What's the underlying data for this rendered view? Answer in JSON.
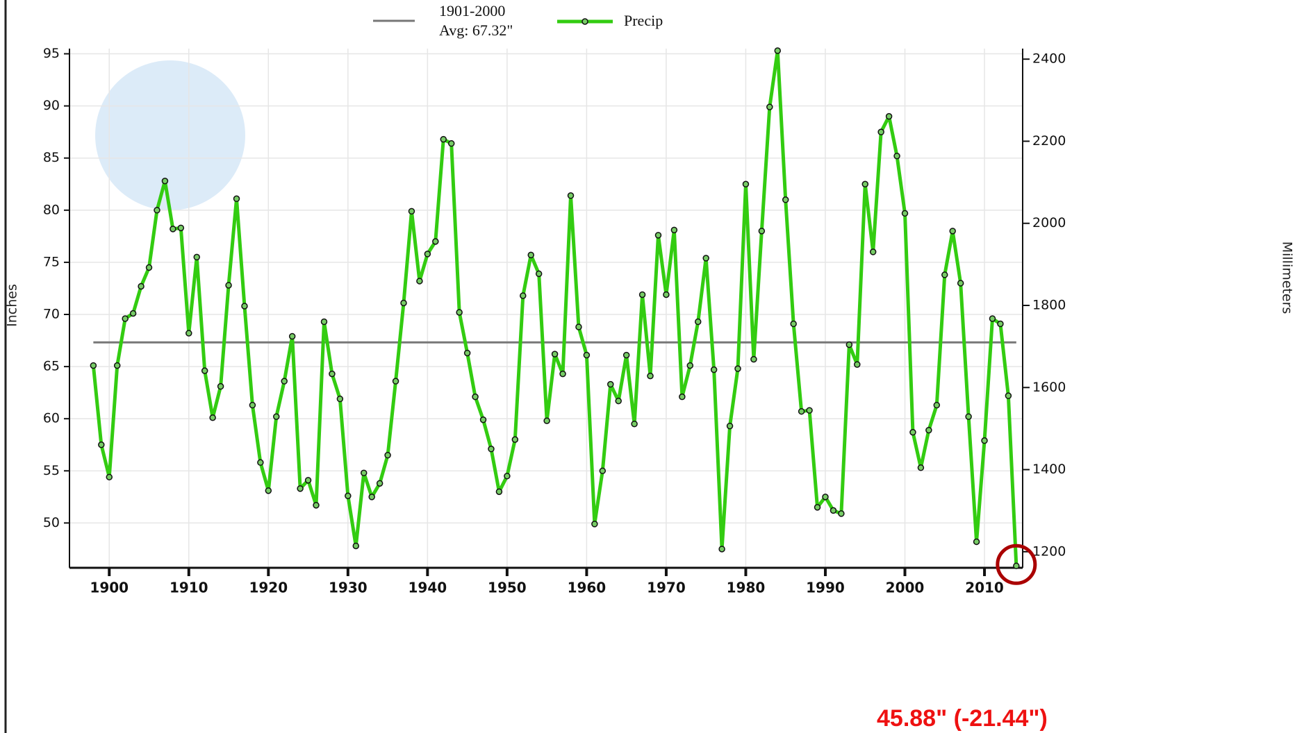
{
  "chart_data": {
    "type": "line",
    "x": [
      1898,
      1899,
      1900,
      1901,
      1902,
      1903,
      1904,
      1905,
      1906,
      1907,
      1908,
      1909,
      1910,
      1911,
      1912,
      1913,
      1914,
      1915,
      1916,
      1917,
      1918,
      1919,
      1920,
      1921,
      1922,
      1923,
      1924,
      1925,
      1926,
      1927,
      1928,
      1929,
      1930,
      1931,
      1932,
      1933,
      1934,
      1935,
      1936,
      1937,
      1938,
      1939,
      1940,
      1941,
      1942,
      1943,
      1944,
      1945,
      1946,
      1947,
      1948,
      1949,
      1950,
      1951,
      1952,
      1953,
      1954,
      1955,
      1956,
      1957,
      1958,
      1959,
      1960,
      1961,
      1962,
      1963,
      1964,
      1965,
      1966,
      1967,
      1968,
      1969,
      1970,
      1971,
      1972,
      1973,
      1974,
      1975,
      1976,
      1977,
      1978,
      1979,
      1980,
      1981,
      1982,
      1983,
      1984,
      1985,
      1986,
      1987,
      1988,
      1989,
      1990,
      1991,
      1992,
      1993,
      1994,
      1995,
      1996,
      1997,
      1998,
      1999,
      2000,
      2001,
      2002,
      2003,
      2004,
      2005,
      2006,
      2007,
      2008,
      2009,
      2010,
      2011,
      2012,
      2013,
      2014
    ],
    "series": [
      {
        "name": "Precip",
        "color": "#33cc11",
        "values": [
          65.1,
          57.5,
          54.4,
          65.1,
          69.6,
          70.1,
          72.7,
          74.5,
          80.0,
          82.8,
          78.2,
          78.3,
          68.2,
          75.5,
          64.6,
          60.1,
          63.1,
          72.8,
          81.1,
          70.8,
          61.3,
          55.8,
          53.1,
          60.2,
          63.6,
          67.9,
          53.3,
          54.1,
          51.7,
          69.3,
          64.3,
          61.9,
          52.6,
          47.8,
          54.8,
          52.5,
          53.8,
          56.5,
          63.6,
          71.1,
          79.9,
          73.2,
          75.8,
          77.0,
          86.8,
          86.4,
          70.2,
          66.3,
          62.1,
          59.9,
          57.1,
          53.0,
          54.5,
          58.0,
          71.8,
          75.7,
          73.9,
          59.8,
          66.2,
          64.3,
          81.4,
          68.8,
          66.1,
          49.9,
          55.0,
          63.3,
          61.7,
          66.1,
          59.5,
          71.9,
          64.1,
          77.6,
          71.9,
          78.1,
          62.1,
          65.1,
          69.3,
          75.4,
          64.7,
          47.5,
          59.3,
          64.8,
          82.5,
          65.7,
          78.0,
          89.9,
          95.3,
          81.0,
          69.1,
          60.7,
          60.8,
          51.5,
          52.5,
          51.2,
          50.9,
          67.1,
          65.2,
          82.5,
          76.0,
          87.5,
          89.0,
          85.2,
          79.7,
          58.7,
          55.3,
          58.9,
          61.3,
          73.8,
          78.0,
          73.0,
          60.2,
          48.2,
          57.9,
          69.6,
          69.1,
          62.2,
          45.88
        ]
      }
    ],
    "reference_line": {
      "name": "1901-2000",
      "label": "Avg: 67.32\"",
      "value": 67.32,
      "color": "#777777"
    },
    "annotation": "45.88\" (-21.44\")",
    "ylabel": "Inches",
    "y2label": "Millimeters",
    "xlim": [
      1895,
      2014.8
    ],
    "xticks": [
      1900,
      1910,
      1920,
      1930,
      1940,
      1950,
      1960,
      1970,
      1980,
      1990,
      2000,
      2010
    ],
    "ylim": [
      45.7,
      95.5
    ],
    "yticks": [
      50,
      55,
      60,
      65,
      70,
      75,
      80,
      85,
      90,
      95
    ],
    "y2lim": [
      1160.8,
      2425.7
    ],
    "y2ticks": [
      1200,
      1400,
      1600,
      1800,
      2000,
      2200,
      2400
    ],
    "grid": true
  }
}
